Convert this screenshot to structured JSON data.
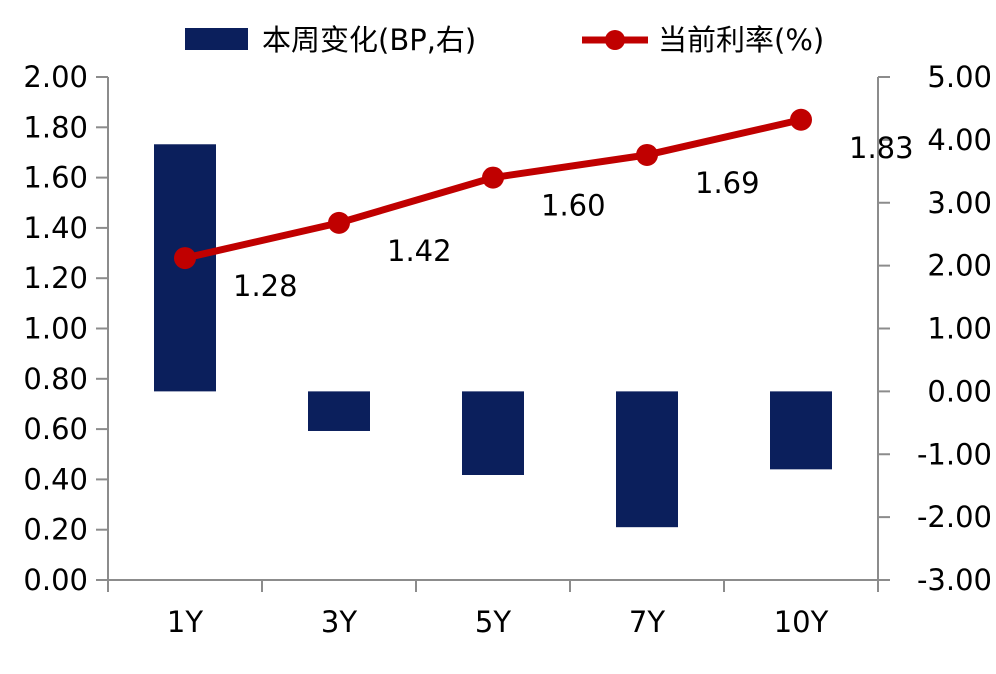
{
  "chart_data": {
    "type": "bar+line",
    "categories": [
      "1Y",
      "3Y",
      "5Y",
      "7Y",
      "10Y"
    ],
    "series": [
      {
        "name": "本周变化(BP,右)",
        "type": "bar",
        "axis": "right",
        "color": "#0b1f5c",
        "values": [
          3.93,
          -0.63,
          -1.33,
          -2.16,
          -1.24
        ]
      },
      {
        "name": "当前利率(%)",
        "type": "line",
        "axis": "left",
        "color": "#c00000",
        "values": [
          1.28,
          1.42,
          1.6,
          1.69,
          1.83
        ],
        "data_labels": [
          "1.28",
          "1.42",
          "1.60",
          "1.69",
          "1.83"
        ]
      }
    ],
    "left_axis": {
      "min": 0,
      "max": 2,
      "step": 0.2,
      "tick_labels": [
        "0.00",
        "0.20",
        "0.40",
        "0.60",
        "0.80",
        "1.00",
        "1.20",
        "1.40",
        "1.60",
        "1.80",
        "2.00"
      ]
    },
    "right_axis": {
      "min": -3,
      "max": 5,
      "step": 1,
      "tick_labels": [
        "-3.00",
        "-2.00",
        "-1.00",
        "0.00",
        "1.00",
        "2.00",
        "3.00",
        "4.00",
        "5.00"
      ]
    },
    "legend_position": "top"
  }
}
